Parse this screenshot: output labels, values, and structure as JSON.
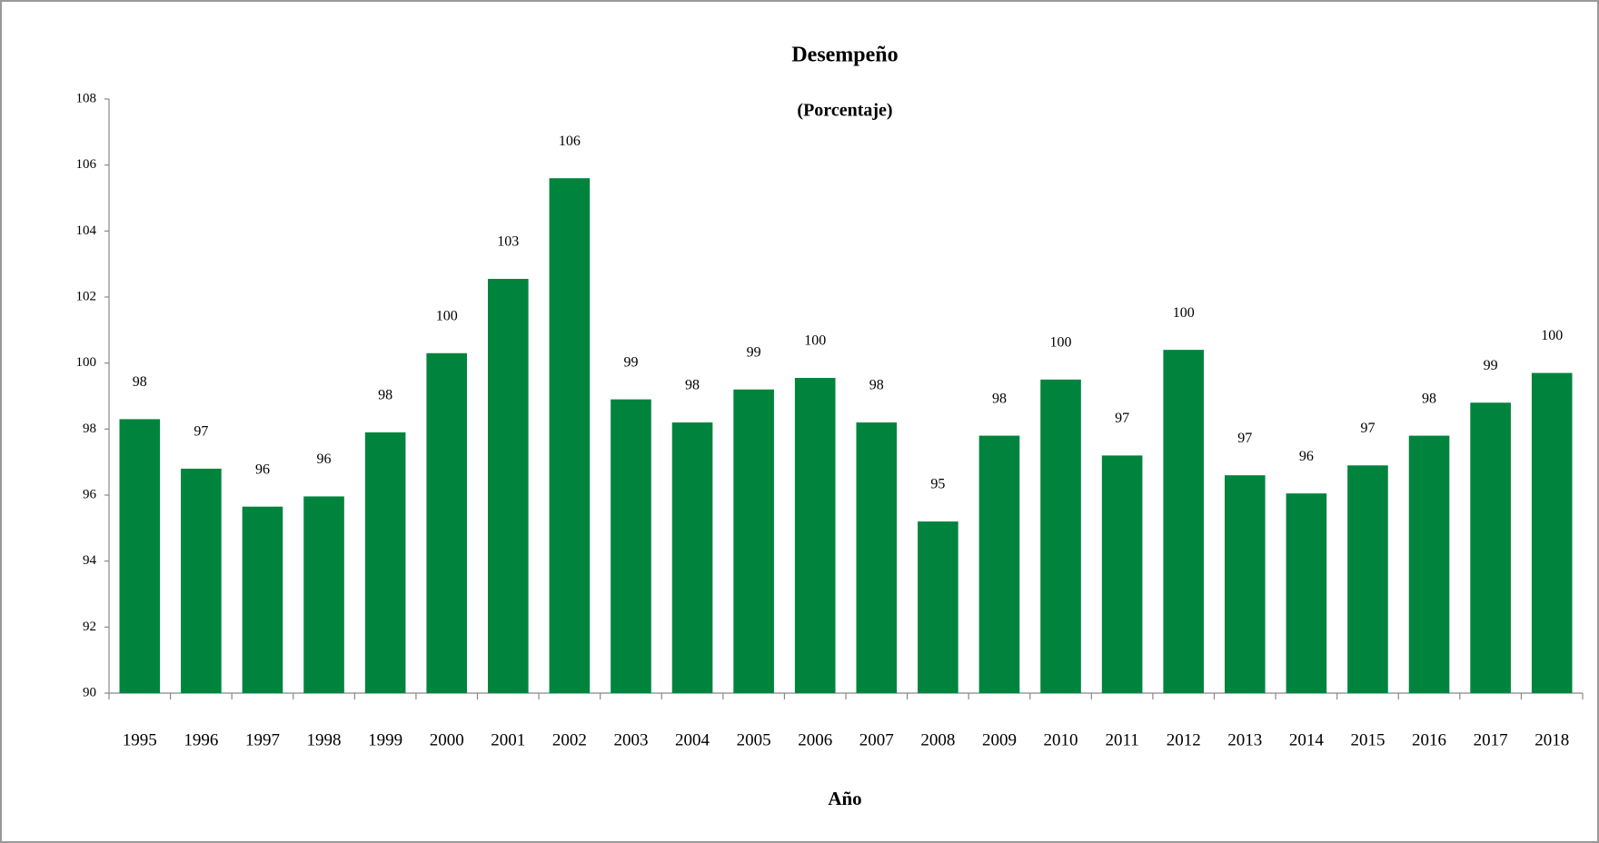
{
  "chart_data": {
    "type": "bar",
    "title": "Desempeño",
    "subtitle": "(Porcentaje)",
    "x_label": "Año",
    "categories": [
      "1995",
      "1996",
      "1997",
      "1998",
      "1999",
      "2000",
      "2001",
      "2002",
      "2003",
      "2004",
      "2005",
      "2006",
      "2007",
      "2008",
      "2009",
      "2010",
      "2011",
      "2012",
      "2013",
      "2014",
      "2015",
      "2016",
      "2017",
      "2018"
    ],
    "values": [
      98.3,
      96.8,
      95.65,
      95.96,
      97.9,
      100.3,
      102.55,
      105.6,
      98.9,
      98.2,
      99.2,
      99.55,
      98.2,
      95.2,
      97.8,
      99.5,
      97.2,
      100.4,
      96.6,
      96.05,
      96.9,
      97.8,
      98.8,
      99.7
    ],
    "value_labels": [
      "98",
      "97",
      "96",
      "96",
      "98",
      "100",
      "103",
      "106",
      "99",
      "98",
      "99",
      "100",
      "98",
      "95",
      "98",
      "100",
      "97",
      "100",
      "97",
      "96",
      "97",
      "98",
      "99",
      "100"
    ],
    "color": "#00843d",
    "ylim": [
      90,
      108
    ],
    "yticks": [
      90,
      92,
      94,
      96,
      98,
      100,
      102,
      104,
      106,
      108
    ],
    "grid": false
  }
}
